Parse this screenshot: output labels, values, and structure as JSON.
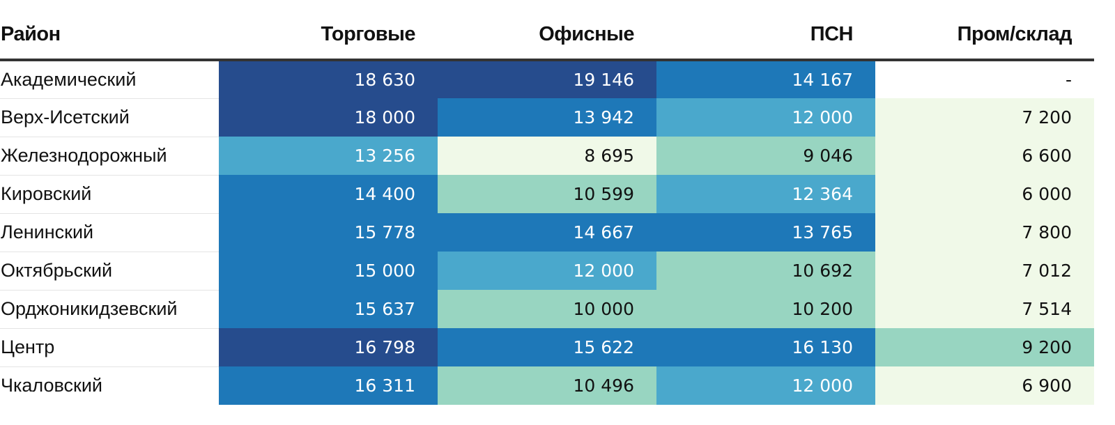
{
  "chart_data": {
    "type": "table",
    "title": "",
    "columns": [
      "Район",
      "Торговые",
      "Офисные",
      "ПСН",
      "Пром/склад"
    ],
    "rows": [
      {
        "district": "Академический",
        "values": [
          "18 630",
          "19 146",
          "14 167",
          "-"
        ]
      },
      {
        "district": "Верх-Исетский",
        "values": [
          "18 000",
          "13 942",
          "12 000",
          "7 200"
        ]
      },
      {
        "district": "Железнодорожный",
        "values": [
          "13 256",
          "8 695",
          "9 046",
          "6 600"
        ]
      },
      {
        "district": "Кировский",
        "values": [
          "14 400",
          "10 599",
          "12 364",
          "6 000"
        ]
      },
      {
        "district": "Ленинский",
        "values": [
          "15 778",
          "14 667",
          "13 765",
          "7 800"
        ]
      },
      {
        "district": "Октябрьский",
        "values": [
          "15 000",
          "12 000",
          "10 692",
          "7 012"
        ]
      },
      {
        "district": "Орджоникидзевский",
        "values": [
          "15 637",
          "10 000",
          "10 200",
          "7 514"
        ]
      },
      {
        "district": "Центр",
        "values": [
          "16 798",
          "15 622",
          "16 130",
          "9 200"
        ]
      },
      {
        "district": "Чкаловский",
        "values": [
          "16 311",
          "10 496",
          "12 000",
          "6 900"
        ]
      }
    ]
  },
  "colors": {
    "scale": [
      {
        "min": 0,
        "color": "#f0f9e8"
      },
      {
        "min": 9000,
        "color": "#98d5c1"
      },
      {
        "min": 11000,
        "color": "#4aa8cc"
      },
      {
        "min": 13500,
        "color": "#1e78b8"
      },
      {
        "min": 16500,
        "color": "#264c8d"
      }
    ],
    "light_text_from": 11000,
    "empty_cell": "#ffffff"
  }
}
